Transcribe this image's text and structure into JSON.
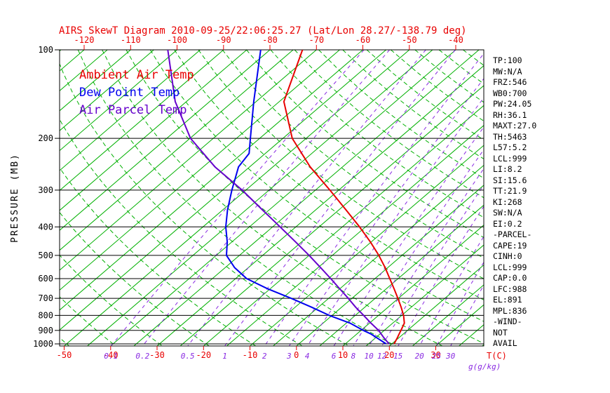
{
  "title": "AIRS SkewT Diagram 2010-09-25/22:06:25.27 (Lat/Lon 28.27/-138.79 deg)",
  "colors": {
    "title": "#e80000",
    "axis": "#000000",
    "isotherm": "#00b000",
    "dry_adiabat": "#00b000",
    "mixing_ratio": "#8a2be2",
    "temp_label": "#e80000",
    "pressure_label": "#000000"
  },
  "stats": {
    "lines": [
      "TP:100",
      "MW:N/A",
      "FRZ:546",
      "WB0:700",
      "PW:24.05",
      "RH:36.1",
      "MAXT:27.0",
      "TH:5463",
      "L57:5.2",
      "LCL:999",
      "LI:8.2",
      "SI:15.6",
      "TT:21.9",
      "KI:268",
      "SW:N/A",
      "EI:0.2",
      "-PARCEL-",
      "CAPE:19",
      "CINH:0",
      "LCL:999",
      "CAP:0.0",
      "LFC:988",
      "EL:891",
      "MPL:836",
      "-WIND-",
      "NOT",
      "AVAIL"
    ]
  },
  "chart_data": {
    "type": "line",
    "projection": "skew-t-log-p",
    "pressure_axis": {
      "label": "PRESSURE (MB)",
      "scale": "log",
      "ticks_mb": [
        100,
        200,
        300,
        400,
        500,
        600,
        700,
        800,
        900,
        1000
      ],
      "range_mb": [
        100,
        1016
      ]
    },
    "temp_axis": {
      "label": "T(C)",
      "ticks_top_c": [
        -120,
        -110,
        -100,
        -90,
        -80,
        -70,
        -60,
        -50,
        -40
      ],
      "ticks_bottom_c": [
        -50,
        -40,
        -30,
        -20,
        -10,
        0,
        10,
        20,
        30
      ]
    },
    "mixing_ratio_axis": {
      "label": "g(g/kg)",
      "lines_g_per_kg": [
        0.1,
        0.2,
        0.5,
        1,
        2,
        3,
        4,
        6,
        8,
        10,
        12,
        15,
        20,
        25,
        30
      ]
    },
    "grid": {
      "isotherm_step_c": 5,
      "isotherm_range_c": [
        -130,
        45
      ],
      "dry_adiabat_step_c": 10,
      "dry_adiabat_range_c": [
        -50,
        190
      ]
    },
    "series": [
      {
        "id": "ambient-air-temp",
        "name": "Ambient Air Temp",
        "color": "#e80000",
        "points_mb_c": [
          [
            100,
            -73
          ],
          [
            150,
            -64
          ],
          [
            200,
            -53
          ],
          [
            250,
            -42
          ],
          [
            300,
            -31.9
          ],
          [
            350,
            -23.5
          ],
          [
            400,
            -16.3
          ],
          [
            450,
            -10.2
          ],
          [
            500,
            -5.0
          ],
          [
            550,
            -0.6
          ],
          [
            600,
            3.2
          ],
          [
            650,
            6.7
          ],
          [
            700,
            9.9
          ],
          [
            750,
            12.8
          ],
          [
            800,
            15.4
          ],
          [
            850,
            17.5
          ],
          [
            900,
            18.6
          ],
          [
            925,
            19.1
          ],
          [
            950,
            19.6
          ],
          [
            1000,
            20.5
          ]
        ]
      },
      {
        "id": "dew-point-temp",
        "name": "Dew Point Temp",
        "color": "#0000ee",
        "points_mb_c": [
          [
            100,
            -82
          ],
          [
            150,
            -70.5
          ],
          [
            200,
            -62
          ],
          [
            225,
            -58.5
          ],
          [
            250,
            -57.4
          ],
          [
            300,
            -53
          ],
          [
            350,
            -49
          ],
          [
            400,
            -45.1
          ],
          [
            450,
            -41
          ],
          [
            500,
            -37.8
          ],
          [
            550,
            -33
          ],
          [
            600,
            -27.6
          ],
          [
            650,
            -20.5
          ],
          [
            700,
            -13.1
          ],
          [
            750,
            -6.5
          ],
          [
            800,
            -0.6
          ],
          [
            850,
            5.8
          ],
          [
            900,
            10.5
          ],
          [
            925,
            13
          ],
          [
            950,
            15
          ],
          [
            1000,
            18.8
          ]
        ]
      },
      {
        "id": "air-parcel-temp",
        "name": "Air Parcel Temp",
        "color": "#6600cc",
        "points_mb_c": [
          [
            100,
            -102
          ],
          [
            150,
            -87.4
          ],
          [
            200,
            -74.9
          ],
          [
            250,
            -62.5
          ],
          [
            300,
            -50.8
          ],
          [
            350,
            -41.5
          ],
          [
            400,
            -33.4
          ],
          [
            450,
            -26.3
          ],
          [
            500,
            -20.0
          ],
          [
            550,
            -14.5
          ],
          [
            600,
            -9.5
          ],
          [
            650,
            -5.0
          ],
          [
            700,
            -0.8
          ],
          [
            750,
            3.0
          ],
          [
            800,
            6.8
          ],
          [
            850,
            10.3
          ],
          [
            900,
            13.8
          ],
          [
            950,
            16.6
          ],
          [
            1000,
            19.4
          ]
        ]
      }
    ]
  }
}
